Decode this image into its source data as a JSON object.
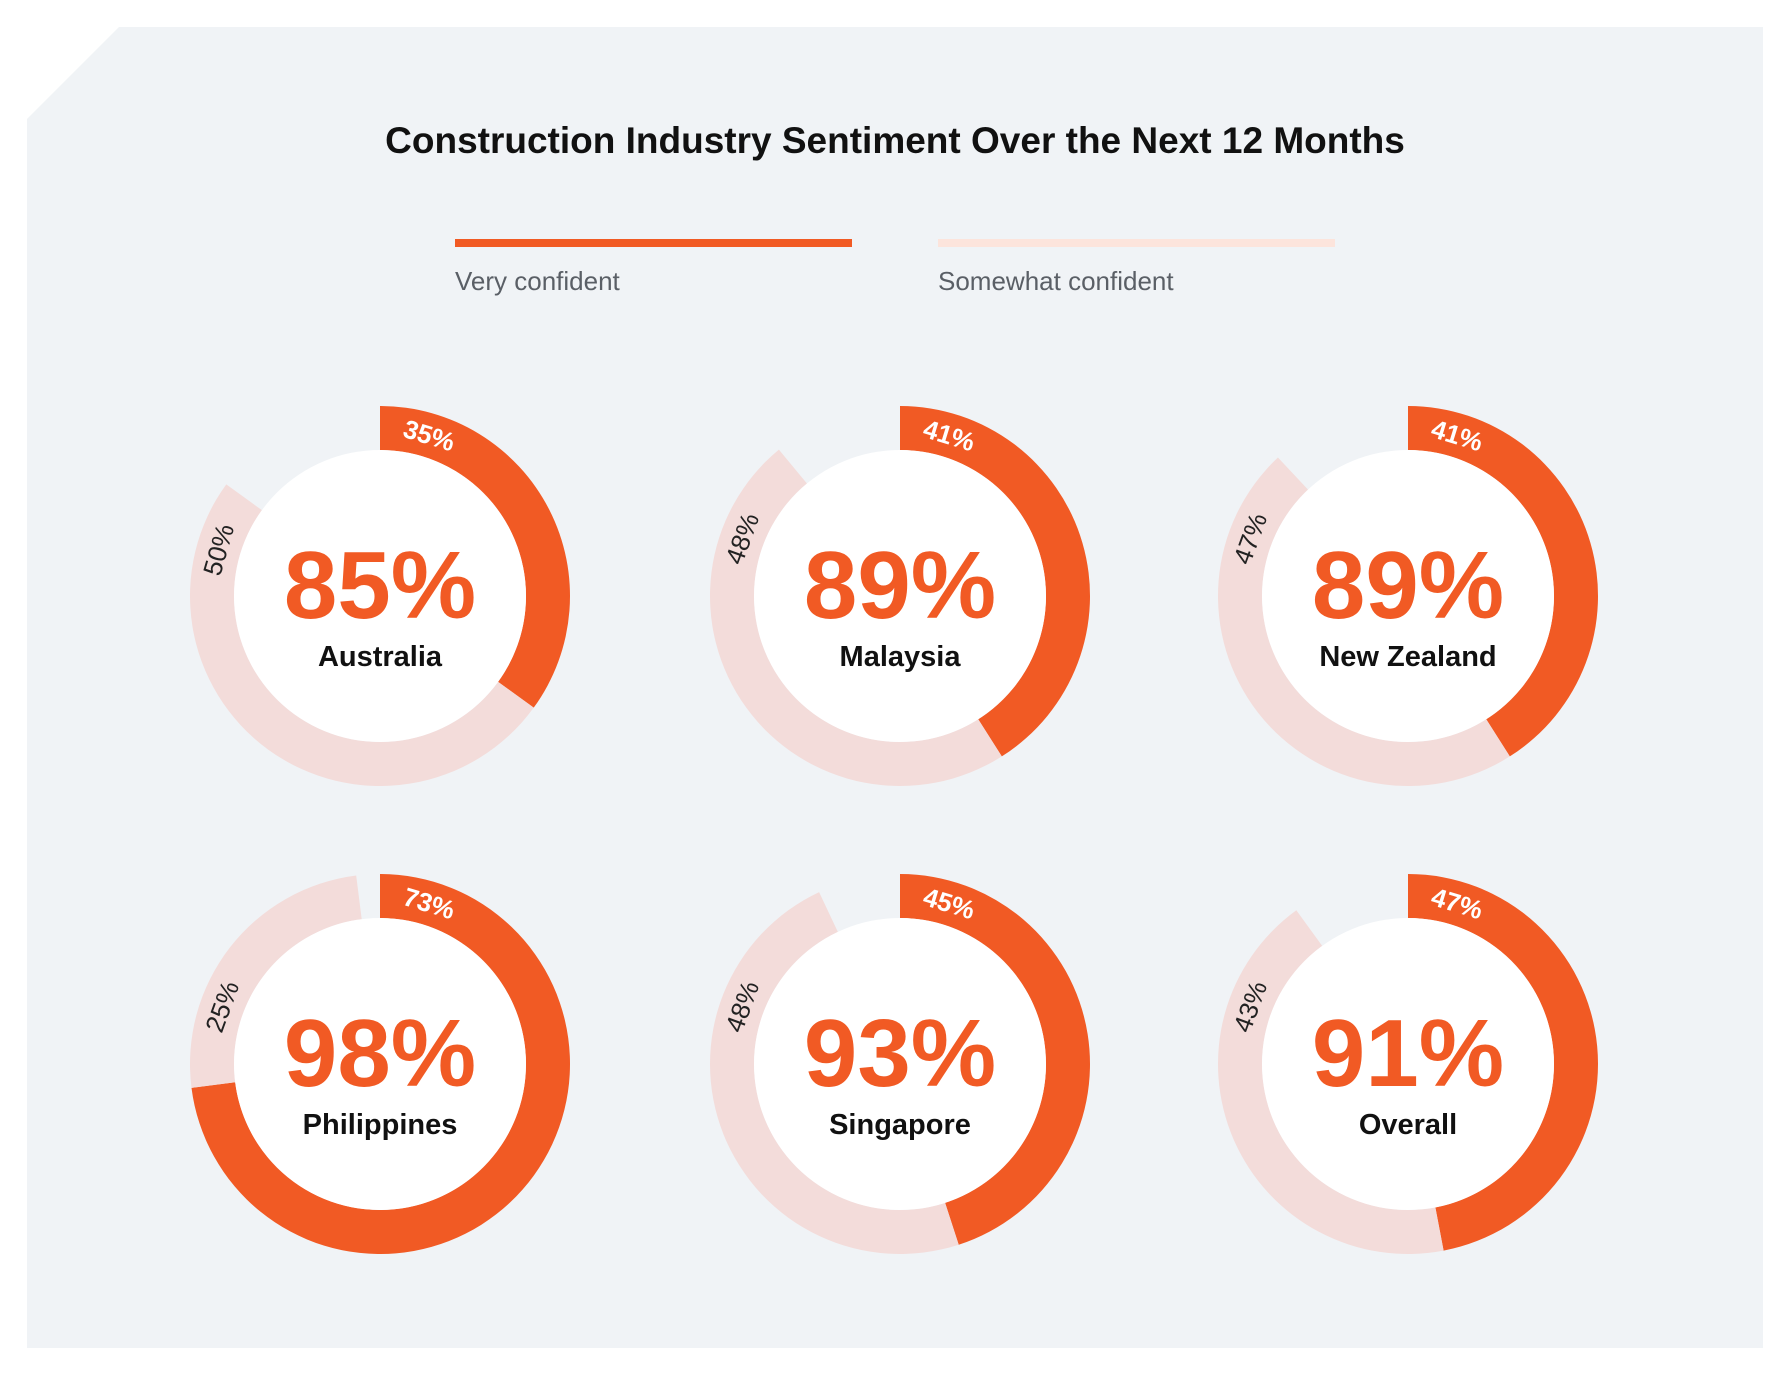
{
  "chart_data": {
    "type": "donut",
    "title": "Construction Industry Sentiment Over the Next 12 Months",
    "legend": [
      {
        "name": "Very confident",
        "color": "#F15A24"
      },
      {
        "name": "Somewhat confident",
        "color": "#FCE4DC"
      }
    ],
    "ring_colors": {
      "very": "#F15A24",
      "somewhat": "#F3DCDA"
    },
    "charts": [
      {
        "country": "Australia",
        "total": "85%",
        "very": 35,
        "somewhat": 50,
        "very_label": "35%",
        "somewhat_label": "50%"
      },
      {
        "country": "Malaysia",
        "total": "89%",
        "very": 41,
        "somewhat": 48,
        "very_label": "41%",
        "somewhat_label": "48%"
      },
      {
        "country": "New Zealand",
        "total": "89%",
        "very": 41,
        "somewhat": 47,
        "very_label": "41%",
        "somewhat_label": "47%"
      },
      {
        "country": "Philippines",
        "total": "98%",
        "very": 73,
        "somewhat": 25,
        "very_label": "73%",
        "somewhat_label": "25%"
      },
      {
        "country": "Singapore",
        "total": "93%",
        "very": 45,
        "somewhat": 48,
        "very_label": "45%",
        "somewhat_label": "48%"
      },
      {
        "country": "Overall",
        "total": "91%",
        "very": 47,
        "somewhat": 43,
        "very_label": "47%",
        "somewhat_label": "43%"
      }
    ]
  }
}
